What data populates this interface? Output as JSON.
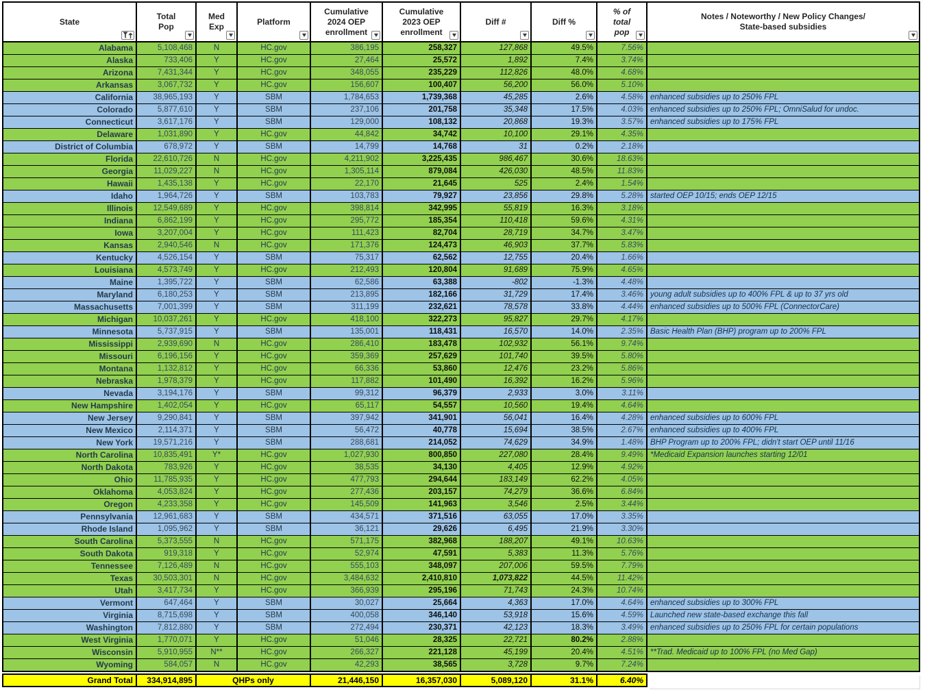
{
  "colors": {
    "hcgov_row": "#92d050",
    "sbm_row": "#9dc3e6",
    "total_row": "#ffff00"
  },
  "icons": {
    "state_header": "funnel-sort-ascending",
    "other_headers": "filter-dropdown-arrow"
  },
  "header": {
    "columns": [
      {
        "label": "State"
      },
      {
        "label": "Total\nPop"
      },
      {
        "label": "Med\nExp"
      },
      {
        "label": "Platform"
      },
      {
        "label": "Cumulative\n2024 OEP\nenrollment"
      },
      {
        "label": "Cumulative\n2023 OEP\nenrollment"
      },
      {
        "label": "Diff #"
      },
      {
        "label": "Diff %"
      },
      {
        "label": "% of\ntotal\npop"
      },
      {
        "label": "Notes / Noteworthy / New Policy Changes/\nState-based subsidies"
      }
    ]
  },
  "rows": [
    {
      "state": "Alabama",
      "total_pop": "5,108,468",
      "med_exp": "N",
      "platform": "HC.gov",
      "enroll_2024": "386,195",
      "enroll_2023": "258,327",
      "diff_num": "127,868",
      "diff_pct": "49.5%",
      "pct_total_pop": "7.56%",
      "notes": ""
    },
    {
      "state": "Alaska",
      "total_pop": "733,406",
      "med_exp": "Y",
      "platform": "HC.gov",
      "enroll_2024": "27,464",
      "enroll_2023": "25,572",
      "diff_num": "1,892",
      "diff_pct": "7.4%",
      "pct_total_pop": "3.74%",
      "notes": ""
    },
    {
      "state": "Arizona",
      "total_pop": "7,431,344",
      "med_exp": "Y",
      "platform": "HC.gov",
      "enroll_2024": "348,055",
      "enroll_2023": "235,229",
      "diff_num": "112,826",
      "diff_pct": "48.0%",
      "pct_total_pop": "4.68%",
      "notes": ""
    },
    {
      "state": "Arkansas",
      "total_pop": "3,067,732",
      "med_exp": "Y",
      "platform": "HC.gov",
      "enroll_2024": "156,607",
      "enroll_2023": "100,407",
      "diff_num": "56,200",
      "diff_pct": "56.0%",
      "pct_total_pop": "5.10%",
      "notes": ""
    },
    {
      "state": "California",
      "total_pop": "38,965,193",
      "med_exp": "Y",
      "platform": "SBM",
      "enroll_2024": "1,784,653",
      "enroll_2023": "1,739,368",
      "diff_num": "45,285",
      "diff_pct": "2.6%",
      "pct_total_pop": "4.58%",
      "notes": "enhanced subsidies up to 250% FPL"
    },
    {
      "state": "Colorado",
      "total_pop": "5,877,610",
      "med_exp": "Y",
      "platform": "SBM",
      "enroll_2024": "237,106",
      "enroll_2023": "201,758",
      "diff_num": "35,348",
      "diff_pct": "17.5%",
      "pct_total_pop": "4.03%",
      "notes": "enhanced subsidies up to 250% FPL; OmniSalud for undoc."
    },
    {
      "state": "Connecticut",
      "total_pop": "3,617,176",
      "med_exp": "Y",
      "platform": "SBM",
      "enroll_2024": "129,000",
      "enroll_2023": "108,132",
      "diff_num": "20,868",
      "diff_pct": "19.3%",
      "pct_total_pop": "3.57%",
      "notes": "enhanced subsidies up to 175% FPL"
    },
    {
      "state": "Delaware",
      "total_pop": "1,031,890",
      "med_exp": "Y",
      "platform": "HC.gov",
      "enroll_2024": "44,842",
      "enroll_2023": "34,742",
      "diff_num": "10,100",
      "diff_pct": "29.1%",
      "pct_total_pop": "4.35%",
      "notes": ""
    },
    {
      "state": "District of Columbia",
      "total_pop": "678,972",
      "med_exp": "Y",
      "platform": "SBM",
      "enroll_2024": "14,799",
      "enroll_2023": "14,768",
      "diff_num": "31",
      "diff_pct": "0.2%",
      "pct_total_pop": "2.18%",
      "notes": ""
    },
    {
      "state": "Florida",
      "total_pop": "22,610,726",
      "med_exp": "N",
      "platform": "HC.gov",
      "enroll_2024": "4,211,902",
      "enroll_2023": "3,225,435",
      "diff_num": "986,467",
      "diff_pct": "30.6%",
      "pct_total_pop": "18.63%",
      "notes": ""
    },
    {
      "state": "Georgia",
      "total_pop": "11,029,227",
      "med_exp": "N",
      "platform": "HC.gov",
      "enroll_2024": "1,305,114",
      "enroll_2023": "879,084",
      "diff_num": "426,030",
      "diff_pct": "48.5%",
      "pct_total_pop": "11.83%",
      "notes": ""
    },
    {
      "state": "Hawaii",
      "total_pop": "1,435,138",
      "med_exp": "Y",
      "platform": "HC.gov",
      "enroll_2024": "22,170",
      "enroll_2023": "21,645",
      "diff_num": "525",
      "diff_pct": "2.4%",
      "pct_total_pop": "1.54%",
      "notes": ""
    },
    {
      "state": "Idaho",
      "total_pop": "1,964,726",
      "med_exp": "Y",
      "platform": "SBM",
      "enroll_2024": "103,783",
      "enroll_2023": "79,927",
      "diff_num": "23,856",
      "diff_pct": "29.8%",
      "pct_total_pop": "5.28%",
      "notes": "started OEP 10/15; ends OEP 12/15"
    },
    {
      "state": "Illinois",
      "total_pop": "12,549,689",
      "med_exp": "Y",
      "platform": "HC.gov",
      "enroll_2024": "398,814",
      "enroll_2023": "342,995",
      "diff_num": "55,819",
      "diff_pct": "16.3%",
      "pct_total_pop": "3.18%",
      "notes": ""
    },
    {
      "state": "Indiana",
      "total_pop": "6,862,199",
      "med_exp": "Y",
      "platform": "HC.gov",
      "enroll_2024": "295,772",
      "enroll_2023": "185,354",
      "diff_num": "110,418",
      "diff_pct": "59.6%",
      "pct_total_pop": "4.31%",
      "notes": ""
    },
    {
      "state": "Iowa",
      "total_pop": "3,207,004",
      "med_exp": "Y",
      "platform": "HC.gov",
      "enroll_2024": "111,423",
      "enroll_2023": "82,704",
      "diff_num": "28,719",
      "diff_pct": "34.7%",
      "pct_total_pop": "3.47%",
      "notes": ""
    },
    {
      "state": "Kansas",
      "total_pop": "2,940,546",
      "med_exp": "N",
      "platform": "HC.gov",
      "enroll_2024": "171,376",
      "enroll_2023": "124,473",
      "diff_num": "46,903",
      "diff_pct": "37.7%",
      "pct_total_pop": "5.83%",
      "notes": ""
    },
    {
      "state": "Kentucky",
      "total_pop": "4,526,154",
      "med_exp": "Y",
      "platform": "SBM",
      "enroll_2024": "75,317",
      "enroll_2023": "62,562",
      "diff_num": "12,755",
      "diff_pct": "20.4%",
      "pct_total_pop": "1.66%",
      "notes": ""
    },
    {
      "state": "Louisiana",
      "total_pop": "4,573,749",
      "med_exp": "Y",
      "platform": "HC.gov",
      "enroll_2024": "212,493",
      "enroll_2023": "120,804",
      "diff_num": "91,689",
      "diff_pct": "75.9%",
      "pct_total_pop": "4.65%",
      "notes": ""
    },
    {
      "state": "Maine",
      "total_pop": "1,395,722",
      "med_exp": "Y",
      "platform": "SBM",
      "enroll_2024": "62,586",
      "enroll_2023": "63,388",
      "diff_num": "-802",
      "diff_pct": "-1.3%",
      "pct_total_pop": "4.48%",
      "notes": ""
    },
    {
      "state": "Maryland",
      "total_pop": "6,180,253",
      "med_exp": "Y",
      "platform": "SBM",
      "enroll_2024": "213,895",
      "enroll_2023": "182,166",
      "diff_num": "31,729",
      "diff_pct": "17.4%",
      "pct_total_pop": "3.46%",
      "notes": "young adult subsidies up to 400% FPL & up to 37 yrs old"
    },
    {
      "state": "Massachusetts",
      "total_pop": "7,001,399",
      "med_exp": "Y",
      "platform": "SBM",
      "enroll_2024": "311,199",
      "enroll_2023": "232,621",
      "diff_num": "78,578",
      "diff_pct": "33.8%",
      "pct_total_pop": "4.44%",
      "notes": "enhanced subsidies up to 500% FPL (ConnectorCare)"
    },
    {
      "state": "Michigan",
      "total_pop": "10,037,261",
      "med_exp": "Y",
      "platform": "HC.gov",
      "enroll_2024": "418,100",
      "enroll_2023": "322,273",
      "diff_num": "95,827",
      "diff_pct": "29.7%",
      "pct_total_pop": "4.17%",
      "notes": ""
    },
    {
      "state": "Minnesota",
      "total_pop": "5,737,915",
      "med_exp": "Y",
      "platform": "SBM",
      "enroll_2024": "135,001",
      "enroll_2023": "118,431",
      "diff_num": "16,570",
      "diff_pct": "14.0%",
      "pct_total_pop": "2.35%",
      "notes": "Basic Health Plan (BHP) program up to 200% FPL"
    },
    {
      "state": "Mississippi",
      "total_pop": "2,939,690",
      "med_exp": "N",
      "platform": "HC.gov",
      "enroll_2024": "286,410",
      "enroll_2023": "183,478",
      "diff_num": "102,932",
      "diff_pct": "56.1%",
      "pct_total_pop": "9.74%",
      "notes": ""
    },
    {
      "state": "Missouri",
      "total_pop": "6,196,156",
      "med_exp": "Y",
      "platform": "HC.gov",
      "enroll_2024": "359,369",
      "enroll_2023": "257,629",
      "diff_num": "101,740",
      "diff_pct": "39.5%",
      "pct_total_pop": "5.80%",
      "notes": ""
    },
    {
      "state": "Montana",
      "total_pop": "1,132,812",
      "med_exp": "Y",
      "platform": "HC.gov",
      "enroll_2024": "66,336",
      "enroll_2023": "53,860",
      "diff_num": "12,476",
      "diff_pct": "23.2%",
      "pct_total_pop": "5.86%",
      "notes": ""
    },
    {
      "state": "Nebraska",
      "total_pop": "1,978,379",
      "med_exp": "Y",
      "platform": "HC.gov",
      "enroll_2024": "117,882",
      "enroll_2023": "101,490",
      "diff_num": "16,392",
      "diff_pct": "16.2%",
      "pct_total_pop": "5.96%",
      "notes": ""
    },
    {
      "state": "Nevada",
      "total_pop": "3,194,176",
      "med_exp": "Y",
      "platform": "SBM",
      "enroll_2024": "99,312",
      "enroll_2023": "96,379",
      "diff_num": "2,933",
      "diff_pct": "3.0%",
      "pct_total_pop": "3.11%",
      "notes": ""
    },
    {
      "state": "New Hampshire",
      "total_pop": "1,402,054",
      "med_exp": "Y",
      "platform": "HC.gov",
      "enroll_2024": "65,117",
      "enroll_2023": "54,557",
      "diff_num": "10,560",
      "diff_pct": "19.4%",
      "pct_total_pop": "4.64%",
      "notes": ""
    },
    {
      "state": "New Jersey",
      "total_pop": "9,290,841",
      "med_exp": "Y",
      "platform": "SBM",
      "enroll_2024": "397,942",
      "enroll_2023": "341,901",
      "diff_num": "56,041",
      "diff_pct": "16.4%",
      "pct_total_pop": "4.28%",
      "notes": "enhanced subsidies up to 600% FPL"
    },
    {
      "state": "New Mexico",
      "total_pop": "2,114,371",
      "med_exp": "Y",
      "platform": "SBM",
      "enroll_2024": "56,472",
      "enroll_2023": "40,778",
      "diff_num": "15,694",
      "diff_pct": "38.5%",
      "pct_total_pop": "2.67%",
      "notes": "enhanced subsidies up to 400% FPL"
    },
    {
      "state": "New York",
      "total_pop": "19,571,216",
      "med_exp": "Y",
      "platform": "SBM",
      "enroll_2024": "288,681",
      "enroll_2023": "214,052",
      "diff_num": "74,629",
      "diff_pct": "34.9%",
      "pct_total_pop": "1.48%",
      "notes": "BHP Program up to 200% FPL; didn't start OEP until 11/16"
    },
    {
      "state": "North Carolina",
      "total_pop": "10,835,491",
      "med_exp": "Y*",
      "platform": "HC.gov",
      "enroll_2024": "1,027,930",
      "enroll_2023": "800,850",
      "diff_num": "227,080",
      "diff_pct": "28.4%",
      "pct_total_pop": "9.49%",
      "notes": "*Medicaid Expansion launches starting 12/01"
    },
    {
      "state": "North Dakota",
      "total_pop": "783,926",
      "med_exp": "Y",
      "platform": "HC.gov",
      "enroll_2024": "38,535",
      "enroll_2023": "34,130",
      "diff_num": "4,405",
      "diff_pct": "12.9%",
      "pct_total_pop": "4.92%",
      "notes": ""
    },
    {
      "state": "Ohio",
      "total_pop": "11,785,935",
      "med_exp": "Y",
      "platform": "HC.gov",
      "enroll_2024": "477,793",
      "enroll_2023": "294,644",
      "diff_num": "183,149",
      "diff_pct": "62.2%",
      "pct_total_pop": "4.05%",
      "notes": ""
    },
    {
      "state": "Oklahoma",
      "total_pop": "4,053,824",
      "med_exp": "Y",
      "platform": "HC.gov",
      "enroll_2024": "277,436",
      "enroll_2023": "203,157",
      "diff_num": "74,279",
      "diff_pct": "36.6%",
      "pct_total_pop": "6.84%",
      "notes": ""
    },
    {
      "state": "Oregon",
      "total_pop": "4,233,358",
      "med_exp": "Y",
      "platform": "HC.gov",
      "enroll_2024": "145,509",
      "enroll_2023": "141,963",
      "diff_num": "3,546",
      "diff_pct": "2.5%",
      "pct_total_pop": "3.44%",
      "notes": ""
    },
    {
      "state": "Pennsylvania",
      "total_pop": "12,961,683",
      "med_exp": "Y",
      "platform": "SBM",
      "enroll_2024": "434,571",
      "enroll_2023": "371,516",
      "diff_num": "63,055",
      "diff_pct": "17.0%",
      "pct_total_pop": "3.35%",
      "notes": ""
    },
    {
      "state": "Rhode Island",
      "total_pop": "1,095,962",
      "med_exp": "Y",
      "platform": "SBM",
      "enroll_2024": "36,121",
      "enroll_2023": "29,626",
      "diff_num": "6,495",
      "diff_pct": "21.9%",
      "pct_total_pop": "3.30%",
      "notes": ""
    },
    {
      "state": "South Carolina",
      "total_pop": "5,373,555",
      "med_exp": "N",
      "platform": "HC.gov",
      "enroll_2024": "571,175",
      "enroll_2023": "382,968",
      "diff_num": "188,207",
      "diff_pct": "49.1%",
      "pct_total_pop": "10.63%",
      "notes": ""
    },
    {
      "state": "South Dakota",
      "total_pop": "919,318",
      "med_exp": "Y",
      "platform": "HC.gov",
      "enroll_2024": "52,974",
      "enroll_2023": "47,591",
      "diff_num": "5,383",
      "diff_pct": "11.3%",
      "pct_total_pop": "5.76%",
      "notes": ""
    },
    {
      "state": "Tennessee",
      "total_pop": "7,126,489",
      "med_exp": "N",
      "platform": "HC.gov",
      "enroll_2024": "555,103",
      "enroll_2023": "348,097",
      "diff_num": "207,006",
      "diff_pct": "59.5%",
      "pct_total_pop": "7.79%",
      "notes": ""
    },
    {
      "state": "Texas",
      "total_pop": "30,503,301",
      "med_exp": "N",
      "platform": "HC.gov",
      "enroll_2024": "3,484,632",
      "enroll_2023": "2,410,810",
      "diff_num": "1,073,822",
      "diff_pct": "44.5%",
      "pct_total_pop": "11.42%",
      "notes": "",
      "bold": "diff_num"
    },
    {
      "state": "Utah",
      "total_pop": "3,417,734",
      "med_exp": "Y",
      "platform": "HC.gov",
      "enroll_2024": "366,939",
      "enroll_2023": "295,196",
      "diff_num": "71,743",
      "diff_pct": "24.3%",
      "pct_total_pop": "10.74%",
      "notes": ""
    },
    {
      "state": "Vermont",
      "total_pop": "647,464",
      "med_exp": "Y",
      "platform": "SBM",
      "enroll_2024": "30,027",
      "enroll_2023": "25,664",
      "diff_num": "4,363",
      "diff_pct": "17.0%",
      "pct_total_pop": "4.64%",
      "notes": "enhanced subsidies up to 300% FPL"
    },
    {
      "state": "Virginia",
      "total_pop": "8,715,698",
      "med_exp": "Y",
      "platform": "SBM",
      "enroll_2024": "400,058",
      "enroll_2023": "346,140",
      "diff_num": "53,918",
      "diff_pct": "15.6%",
      "pct_total_pop": "4.59%",
      "notes": "Launched new state-based exchange this fall"
    },
    {
      "state": "Washington",
      "total_pop": "7,812,880",
      "med_exp": "Y",
      "platform": "SBM",
      "enroll_2024": "272,494",
      "enroll_2023": "230,371",
      "diff_num": "42,123",
      "diff_pct": "18.3%",
      "pct_total_pop": "3.49%",
      "notes": "enhanced subsidies up to 250% FPL for certain populations"
    },
    {
      "state": "West Virginia",
      "total_pop": "1,770,071",
      "med_exp": "Y",
      "platform": "HC.gov",
      "enroll_2024": "51,046",
      "enroll_2023": "28,325",
      "diff_num": "22,721",
      "diff_pct": "80.2%",
      "pct_total_pop": "2.88%",
      "notes": "",
      "bold": "diff_pct"
    },
    {
      "state": "Wisconsin",
      "total_pop": "5,910,955",
      "med_exp": "N**",
      "platform": "HC.gov",
      "enroll_2024": "266,327",
      "enroll_2023": "221,128",
      "diff_num": "45,199",
      "diff_pct": "20.4%",
      "pct_total_pop": "4.51%",
      "notes": "**Trad. Medicaid up to 100% FPL (no Med Gap)"
    },
    {
      "state": "Wyoming",
      "total_pop": "584,057",
      "med_exp": "N",
      "platform": "HC.gov",
      "enroll_2024": "42,293",
      "enroll_2023": "38,565",
      "diff_num": "3,728",
      "diff_pct": "9.7%",
      "pct_total_pop": "7.24%",
      "notes": ""
    }
  ],
  "grand_total": {
    "label": "Grand Total",
    "total_pop": "334,914,895",
    "platform_note": "QHPs only",
    "enroll_2024": "21,446,150",
    "enroll_2023": "16,357,030",
    "diff_num": "5,089,120",
    "diff_pct": "31.1%",
    "pct_total_pop": "6.40%"
  }
}
